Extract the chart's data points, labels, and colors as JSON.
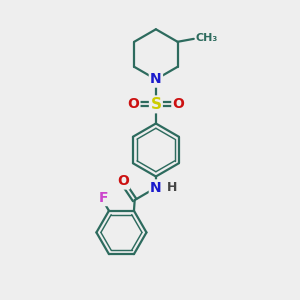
{
  "bg_color": "#eeeeee",
  "bond_color": "#2d6b5e",
  "bond_width": 1.6,
  "atom_colors": {
    "N": "#1a1acc",
    "O": "#cc1111",
    "S": "#cccc00",
    "F": "#cc44cc",
    "C": "#2d6b5e",
    "H": "#444444"
  },
  "font_size": 9,
  "fig_size": [
    3.0,
    3.0
  ],
  "dpi": 100
}
